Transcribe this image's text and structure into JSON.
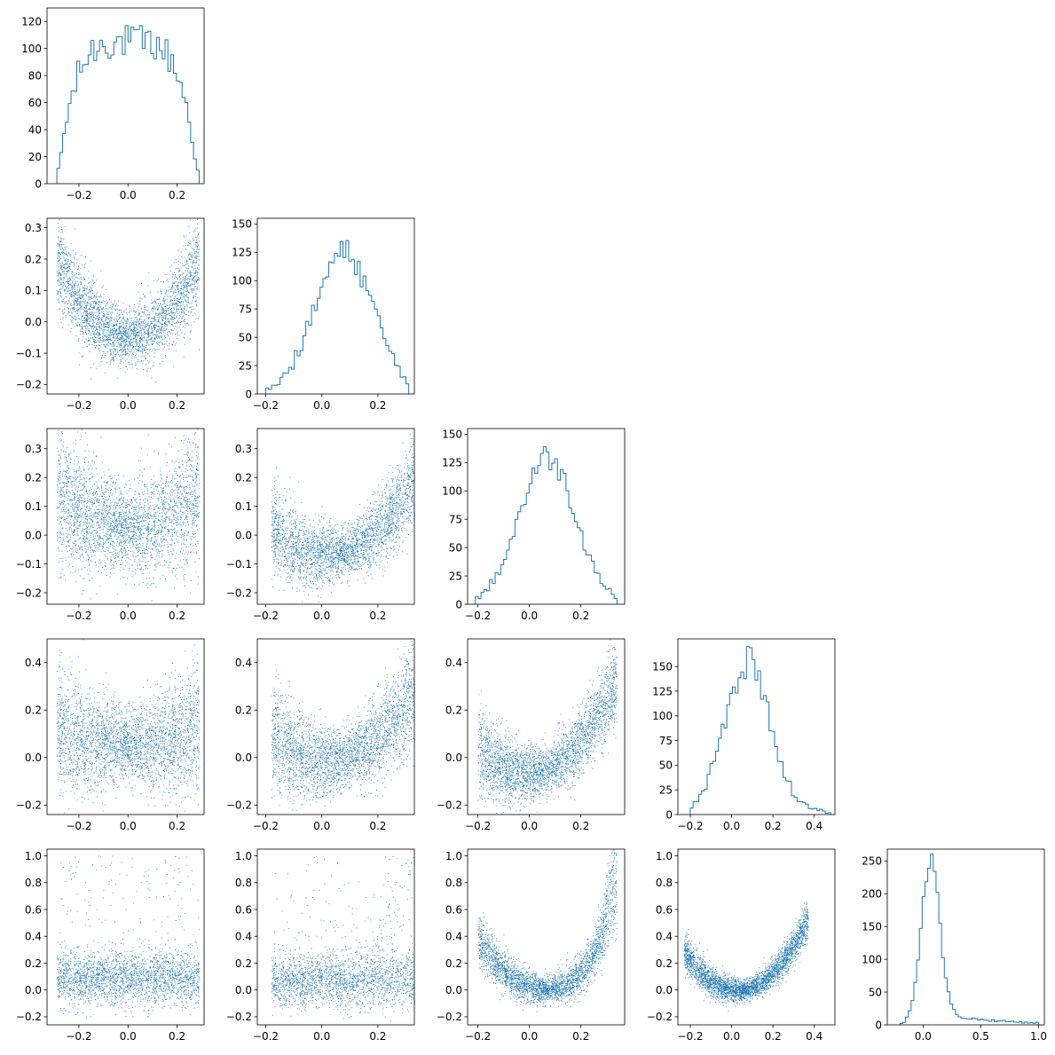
{
  "colors": {
    "series": "#1f77b4"
  },
  "chart_data": [
    {
      "type": "histogram",
      "row": 0,
      "col": 0,
      "xlim": [
        -0.33,
        0.31
      ],
      "ylim": [
        0,
        130
      ],
      "xticks": [
        -0.2,
        0.0,
        0.2
      ],
      "xtick_labels": [
        "−0.2",
        "0.0",
        "0.2"
      ],
      "yticks": [
        0,
        20,
        40,
        60,
        80,
        100,
        120
      ],
      "ytick_labels": [
        "0",
        "20",
        "40",
        "60",
        "80",
        "100",
        "120"
      ],
      "shape": {
        "kind": "plateau",
        "mean": 0,
        "half": 0.29,
        "peak": 105,
        "noise": 13
      }
    },
    {
      "type": "scatter",
      "row": 1,
      "col": 0,
      "xlim": [
        -0.33,
        0.31
      ],
      "ylim": [
        -0.23,
        0.33
      ],
      "xticks": [
        -0.2,
        0.0,
        0.2
      ],
      "xtick_labels": [
        "−0.2",
        "0.0",
        "0.2"
      ],
      "yticks": [
        -0.2,
        -0.1,
        0.0,
        0.1,
        0.2,
        0.3
      ],
      "ytick_labels": [
        "−0.2",
        "−0.1",
        "0.0",
        "0.1",
        "0.2",
        "0.3"
      ],
      "shape": {
        "kind": "parabola",
        "n": 3200,
        "xmean": 0,
        "xhalf": 0.29,
        "a": 2.9,
        "c": -0.05,
        "noise": 0.065
      }
    },
    {
      "type": "histogram",
      "row": 1,
      "col": 1,
      "xlim": [
        -0.23,
        0.33
      ],
      "ylim": [
        0,
        155
      ],
      "xticks": [
        -0.2,
        0.0,
        0.2
      ],
      "xtick_labels": [
        "−0.2",
        "0.0",
        "0.2"
      ],
      "yticks": [
        0,
        25,
        50,
        75,
        100,
        125,
        150
      ],
      "ytick_labels": [
        "0",
        "25",
        "50",
        "75",
        "100",
        "125",
        "150"
      ],
      "shape": {
        "kind": "bell",
        "mean": 0.08,
        "sd": 0.105,
        "lo": -0.2,
        "hi": 0.31,
        "peak": 125,
        "noise": 12
      }
    },
    {
      "type": "scatter",
      "row": 2,
      "col": 0,
      "xlim": [
        -0.33,
        0.31
      ],
      "ylim": [
        -0.24,
        0.37
      ],
      "xticks": [
        -0.2,
        0.0,
        0.2
      ],
      "xtick_labels": [
        "−0.2",
        "0.0",
        "0.2"
      ],
      "yticks": [
        -0.2,
        -0.1,
        0.0,
        0.1,
        0.2,
        0.3
      ],
      "ytick_labels": [
        "−0.2",
        "−0.1",
        "0.0",
        "0.1",
        "0.2",
        "0.3"
      ],
      "shape": {
        "kind": "parabola",
        "n": 3200,
        "xmean": 0,
        "xhalf": 0.29,
        "a": 1.6,
        "c": 0.02,
        "noise": 0.11
      }
    },
    {
      "type": "scatter",
      "row": 2,
      "col": 1,
      "xlim": [
        -0.23,
        0.33
      ],
      "ylim": [
        -0.24,
        0.37
      ],
      "xticks": [
        -0.2,
        0.0,
        0.2
      ],
      "xtick_labels": [
        "−0.2",
        "0.0",
        "0.2"
      ],
      "yticks": [
        -0.2,
        -0.1,
        0.0,
        0.1,
        0.2,
        0.3
      ],
      "ytick_labels": [
        "−0.2",
        "−0.1",
        "0.0",
        "0.1",
        "0.2",
        "0.3"
      ],
      "shape": {
        "kind": "parabola",
        "n": 3200,
        "xmean": 0.08,
        "xhalf": 0.26,
        "a": 2.6,
        "c": -0.06,
        "noise": 0.07,
        "slope": 0.35
      }
    },
    {
      "type": "histogram",
      "row": 2,
      "col": 2,
      "xlim": [
        -0.24,
        0.37
      ],
      "ylim": [
        0,
        155
      ],
      "xticks": [
        -0.2,
        0.0,
        0.2
      ],
      "xtick_labels": [
        "−0.2",
        "0.0",
        "0.2"
      ],
      "yticks": [
        0,
        25,
        50,
        75,
        100,
        125,
        150
      ],
      "ytick_labels": [
        "0",
        "25",
        "50",
        "75",
        "100",
        "125",
        "150"
      ],
      "shape": {
        "kind": "bell",
        "mean": 0.07,
        "sd": 0.11,
        "lo": -0.21,
        "hi": 0.34,
        "peak": 130,
        "noise": 12
      }
    },
    {
      "type": "scatter",
      "row": 3,
      "col": 0,
      "xlim": [
        -0.33,
        0.31
      ],
      "ylim": [
        -0.24,
        0.5
      ],
      "xticks": [
        -0.2,
        0.0,
        0.2
      ],
      "xtick_labels": [
        "−0.2",
        "0.0",
        "0.2"
      ],
      "yticks": [
        -0.2,
        0.0,
        0.2,
        0.4
      ],
      "ytick_labels": [
        "−0.2",
        "0.0",
        "0.2",
        "0.4"
      ],
      "shape": {
        "kind": "parabola",
        "n": 3200,
        "xmean": 0,
        "xhalf": 0.29,
        "a": 0.9,
        "c": 0.05,
        "noise": 0.12
      }
    },
    {
      "type": "scatter",
      "row": 3,
      "col": 1,
      "xlim": [
        -0.23,
        0.33
      ],
      "ylim": [
        -0.24,
        0.5
      ],
      "xticks": [
        -0.2,
        0.0,
        0.2
      ],
      "xtick_labels": [
        "−0.2",
        "0.0",
        "0.2"
      ],
      "yticks": [
        -0.2,
        0.0,
        0.2,
        0.4
      ],
      "ytick_labels": [
        "−0.2",
        "0.0",
        "0.2",
        "0.4"
      ],
      "shape": {
        "kind": "parabola",
        "n": 3200,
        "xmean": 0.08,
        "xhalf": 0.26,
        "a": 2.8,
        "c": 0.0,
        "noise": 0.1,
        "slope": 0.4
      }
    },
    {
      "type": "scatter",
      "row": 3,
      "col": 2,
      "xlim": [
        -0.24,
        0.37
      ],
      "ylim": [
        -0.24,
        0.5
      ],
      "xticks": [
        -0.2,
        0.0,
        0.2
      ],
      "xtick_labels": [
        "−0.2",
        "0.0",
        "0.2"
      ],
      "yticks": [
        -0.2,
        0.0,
        0.2,
        0.4
      ],
      "ytick_labels": [
        "−0.2",
        "0.0",
        "0.2",
        "0.4"
      ],
      "shape": {
        "kind": "parabola",
        "n": 3200,
        "xmean": 0.07,
        "xhalf": 0.27,
        "a": 3.2,
        "c": -0.05,
        "noise": 0.08,
        "slope": 0.5
      }
    },
    {
      "type": "histogram",
      "row": 3,
      "col": 3,
      "xlim": [
        -0.26,
        0.5
      ],
      "ylim": [
        0,
        178
      ],
      "xticks": [
        -0.2,
        0.0,
        0.2,
        0.4
      ],
      "xtick_labels": [
        "−0.2",
        "0.0",
        "0.2",
        "0.4"
      ],
      "yticks": [
        0,
        25,
        50,
        75,
        100,
        125,
        150
      ],
      "ytick_labels": [
        "0",
        "25",
        "50",
        "75",
        "100",
        "125",
        "150"
      ],
      "shape": {
        "kind": "skew",
        "mean": 0.07,
        "sd": 0.11,
        "tail": 0.15,
        "tailw": 0.18,
        "lo": -0.2,
        "hi": 0.48,
        "peak": 145,
        "noise": 12
      }
    },
    {
      "type": "scatter",
      "row": 4,
      "col": 0,
      "xlim": [
        -0.33,
        0.31
      ],
      "ylim": [
        -0.26,
        1.05
      ],
      "xticks": [
        -0.2,
        0.0,
        0.2
      ],
      "xtick_labels": [
        "−0.2",
        "0.0",
        "0.2"
      ],
      "yticks": [
        -0.2,
        0.0,
        0.2,
        0.4,
        0.6,
        0.8,
        1.0
      ],
      "ytick_labels": [
        "−0.2",
        "0.0",
        "0.2",
        "0.4",
        "0.6",
        "0.8",
        "1.0"
      ],
      "shape": {
        "kind": "cloud",
        "n": 3600,
        "xmean": 0,
        "xhalf": 0.29,
        "ymean": 0.08,
        "ysd": 0.1,
        "outliers": 0.06
      }
    },
    {
      "type": "scatter",
      "row": 4,
      "col": 1,
      "xlim": [
        -0.23,
        0.33
      ],
      "ylim": [
        -0.26,
        1.05
      ],
      "xticks": [
        -0.2,
        0.0,
        0.2
      ],
      "xtick_labels": [
        "−0.2",
        "0.0",
        "0.2"
      ],
      "yticks": [
        -0.2,
        0.0,
        0.2,
        0.4,
        0.6,
        0.8,
        1.0
      ],
      "ytick_labels": [
        "−0.2",
        "0.0",
        "0.2",
        "0.4",
        "0.6",
        "0.8",
        "1.0"
      ],
      "shape": {
        "kind": "cloud",
        "n": 3600,
        "xmean": 0.08,
        "xhalf": 0.26,
        "ymean": 0.07,
        "ysd": 0.1,
        "outliers": 0.05,
        "uptrend": 6
      }
    },
    {
      "type": "scatter",
      "row": 4,
      "col": 2,
      "xlim": [
        -0.24,
        0.37
      ],
      "ylim": [
        -0.26,
        1.05
      ],
      "xticks": [
        -0.2,
        0.0,
        0.2
      ],
      "xtick_labels": [
        "−0.2",
        "0.0",
        "0.2"
      ],
      "yticks": [
        -0.2,
        0.0,
        0.2,
        0.4,
        0.6,
        0.8,
        1.0
      ],
      "ytick_labels": [
        "−0.2",
        "0.0",
        "0.2",
        "0.4",
        "0.6",
        "0.8",
        "1.0"
      ],
      "shape": {
        "kind": "parabola",
        "n": 3600,
        "xmean": 0.07,
        "xhalf": 0.27,
        "a": 6.0,
        "c": 0.0,
        "noise": 0.08,
        "slope": 0.2,
        "cubic": 18
      }
    },
    {
      "type": "scatter",
      "row": 4,
      "col": 3,
      "xlim": [
        -0.26,
        0.5
      ],
      "ylim": [
        -0.26,
        1.05
      ],
      "xticks": [
        -0.2,
        0.0,
        0.2,
        0.4
      ],
      "xtick_labels": [
        "−0.2",
        "0.0",
        "0.2",
        "0.4"
      ],
      "yticks": [
        -0.2,
        0.0,
        0.2,
        0.4,
        0.6,
        0.8,
        1.0
      ],
      "ytick_labels": [
        "−0.2",
        "0.0",
        "0.2",
        "0.4",
        "0.6",
        "0.8",
        "1.0"
      ],
      "shape": {
        "kind": "parabola",
        "n": 3600,
        "xmean": 0.07,
        "xhalf": 0.3,
        "a": 4.5,
        "c": 0.0,
        "noise": 0.06,
        "slope": 0.4,
        "tailx": true
      }
    },
    {
      "type": "histogram",
      "row": 4,
      "col": 4,
      "xlim": [
        -0.31,
        1.05
      ],
      "ylim": [
        0,
        268
      ],
      "xticks": [
        0.0,
        0.5,
        1.0
      ],
      "xtick_labels": [
        "0.0",
        "0.5",
        "1.0"
      ],
      "yticks": [
        0,
        50,
        100,
        150,
        200,
        250
      ],
      "ytick_labels": [
        "0",
        "50",
        "100",
        "150",
        "200",
        "250"
      ],
      "shape": {
        "kind": "skew",
        "mean": 0.06,
        "sd": 0.08,
        "tail": 0.08,
        "tailw": 0.5,
        "lo": -0.2,
        "hi": 1.0,
        "peak": 245,
        "noise": 10
      }
    }
  ]
}
